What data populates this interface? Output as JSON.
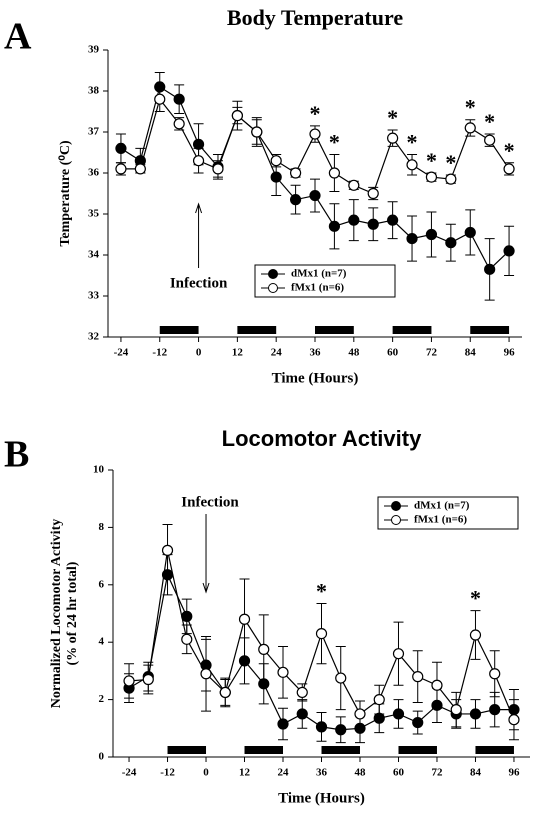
{
  "chart_data": [
    {
      "type": "line",
      "panel": "A",
      "title": "Body Temperature",
      "xlabel": "Time (Hours)",
      "ylabel": [
        "Temperature (⁰C)"
      ],
      "x": [
        -24,
        -18,
        -12,
        -6,
        0,
        6,
        12,
        18,
        24,
        30,
        36,
        42,
        48,
        54,
        60,
        66,
        72,
        78,
        84,
        90,
        96
      ],
      "xlim": [
        -28,
        100
      ],
      "xticks": [
        -24,
        -12,
        0,
        12,
        24,
        36,
        48,
        60,
        72,
        84,
        96
      ],
      "ylim": [
        32,
        39
      ],
      "yticks": [
        32,
        33,
        34,
        35,
        36,
        37,
        38,
        39
      ],
      "legend": "lower center",
      "series": [
        {
          "name": "dMx1 (n=7)",
          "color": "#000000",
          "fill": "#000000",
          "values": [
            36.6,
            36.3,
            38.1,
            37.8,
            36.7,
            36.15,
            37.4,
            37.0,
            35.9,
            35.35,
            35.45,
            34.7,
            34.85,
            34.75,
            34.85,
            34.4,
            34.5,
            34.3,
            34.55,
            33.65,
            34.1
          ],
          "errors": [
            0.35,
            0.3,
            0.35,
            0.35,
            0.5,
            0.3,
            0.35,
            0.35,
            0.45,
            0.35,
            0.4,
            0.55,
            0.5,
            0.4,
            0.45,
            0.55,
            0.55,
            0.45,
            0.55,
            0.75,
            0.6
          ]
        },
        {
          "name": "fMx1 (n=6)",
          "color": "#000000",
          "fill": "#ffffff",
          "values": [
            36.1,
            36.1,
            37.8,
            37.2,
            36.3,
            36.1,
            37.4,
            37.0,
            36.3,
            36.0,
            36.95,
            36.0,
            35.7,
            35.5,
            36.85,
            36.2,
            35.9,
            35.85,
            37.1,
            36.8,
            36.1
          ],
          "errors": [
            0.15,
            0.1,
            0.3,
            0.15,
            0.3,
            0.2,
            0.2,
            0.3,
            0.15,
            0.1,
            0.2,
            0.45,
            0.1,
            0.15,
            0.2,
            0.25,
            0.1,
            0.1,
            0.2,
            0.15,
            0.15
          ]
        }
      ],
      "dark_periods": [
        [
          -12,
          0
        ],
        [
          12,
          24
        ],
        [
          36,
          48
        ],
        [
          60,
          72
        ],
        [
          84,
          96
        ]
      ],
      "significance_marker": "*",
      "significant_x": [
        36,
        42,
        60,
        66,
        72,
        78,
        84,
        90,
        96
      ],
      "infection_label": "Infection",
      "infection_x": 0
    },
    {
      "type": "line",
      "panel": "B",
      "title": "Locomotor Activity",
      "xlabel": "Time (Hours)",
      "ylabel": [
        "Normalized Locomotor Activity",
        "(% of 24 hr total)"
      ],
      "x": [
        -24,
        -18,
        -12,
        -6,
        0,
        6,
        12,
        18,
        24,
        30,
        36,
        42,
        48,
        54,
        60,
        66,
        72,
        78,
        84,
        90,
        96
      ],
      "xlim": [
        -29,
        101
      ],
      "xticks": [
        -24,
        -12,
        0,
        12,
        24,
        36,
        48,
        60,
        72,
        84,
        96
      ],
      "ylim": [
        0,
        10
      ],
      "yticks": [
        0,
        2,
        4,
        6,
        8,
        10
      ],
      "legend": "upper right",
      "series": [
        {
          "name": "dMx1 (n=7)",
          "color": "#000000",
          "fill": "#000000",
          "values": [
            2.4,
            2.8,
            6.35,
            4.9,
            3.2,
            2.25,
            3.35,
            2.55,
            1.15,
            1.5,
            1.05,
            0.95,
            1.0,
            1.35,
            1.5,
            1.2,
            1.8,
            1.5,
            1.5,
            1.65,
            1.65
          ],
          "errors": [
            0.5,
            0.5,
            0.7,
            0.6,
            0.9,
            0.45,
            0.8,
            0.7,
            0.55,
            0.5,
            0.5,
            0.45,
            0.5,
            0.5,
            0.5,
            0.4,
            0.6,
            0.5,
            0.5,
            0.6,
            0.7
          ]
        },
        {
          "name": "fMx1 (n=6)",
          "color": "#000000",
          "fill": "#ffffff",
          "values": [
            2.65,
            2.7,
            7.2,
            4.1,
            2.9,
            2.25,
            4.8,
            3.75,
            2.95,
            2.25,
            4.3,
            2.75,
            1.5,
            2.0,
            3.6,
            2.8,
            2.5,
            1.65,
            4.25,
            2.9,
            1.3
          ],
          "errors": [
            0.6,
            0.5,
            0.9,
            0.5,
            1.3,
            0.5,
            1.4,
            1.2,
            0.9,
            0.3,
            1.05,
            1.1,
            0.45,
            0.5,
            1.1,
            0.9,
            0.8,
            0.6,
            0.85,
            0.8,
            0.7
          ]
        }
      ],
      "dark_periods": [
        [
          -12,
          0
        ],
        [
          12,
          24
        ],
        [
          36,
          48
        ],
        [
          60,
          72
        ],
        [
          84,
          96
        ]
      ],
      "significance_marker": "*",
      "significant_x": [
        36,
        84
      ],
      "infection_label": "Infection",
      "infection_x": 0
    }
  ]
}
